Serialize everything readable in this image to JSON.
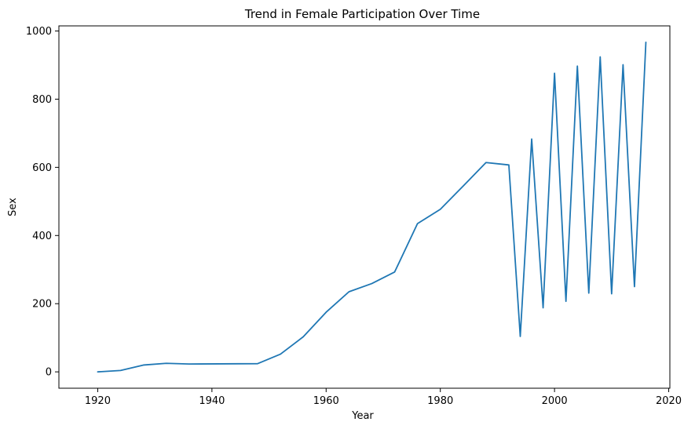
{
  "chart_data": {
    "type": "line",
    "title": "Trend in Female Participation Over Time",
    "xlabel": "Year",
    "ylabel": "Sex",
    "xlim": [
      1913.2,
      2020.2
    ],
    "ylim": [
      -48,
      1015
    ],
    "xticks": [
      1920,
      1940,
      1960,
      1980,
      2000,
      2020
    ],
    "yticks": [
      0,
      200,
      400,
      600,
      800,
      1000
    ],
    "grid": false,
    "series": [
      {
        "color": "#1f77b4",
        "x": [
          1920,
          1924,
          1928,
          1932,
          1936,
          1948,
          1952,
          1956,
          1960,
          1964,
          1968,
          1972,
          1976,
          1980,
          1984,
          1988,
          1992,
          1994,
          1996,
          1998,
          2000,
          2002,
          2004,
          2006,
          2008,
          2010,
          2012,
          2014,
          2016
        ],
        "values": [
          0,
          4,
          20,
          25,
          23,
          24,
          52,
          103,
          175,
          235,
          259,
          293,
          435,
          477,
          545,
          614,
          607,
          104,
          683,
          188,
          876,
          207,
          897,
          231,
          924,
          229,
          901,
          250,
          967
        ]
      }
    ]
  }
}
